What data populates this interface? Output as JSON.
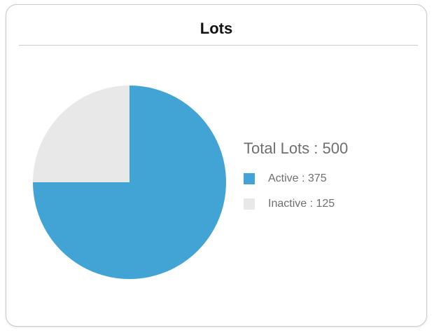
{
  "card": {
    "title": "Lots"
  },
  "legend": {
    "total_text": "Total Lots : 500",
    "items": [
      {
        "label": "Active : 375",
        "color": "#41a4d5"
      },
      {
        "label": "Inactive : 125",
        "color": "#e8e8e8"
      }
    ]
  },
  "chart_data": {
    "type": "pie",
    "title": "",
    "categories": [
      "Active",
      "Inactive"
    ],
    "values": [
      375,
      125
    ],
    "colors": [
      "#41a4d5",
      "#e8e8e8"
    ],
    "total": 500,
    "legend_placement": "right"
  }
}
